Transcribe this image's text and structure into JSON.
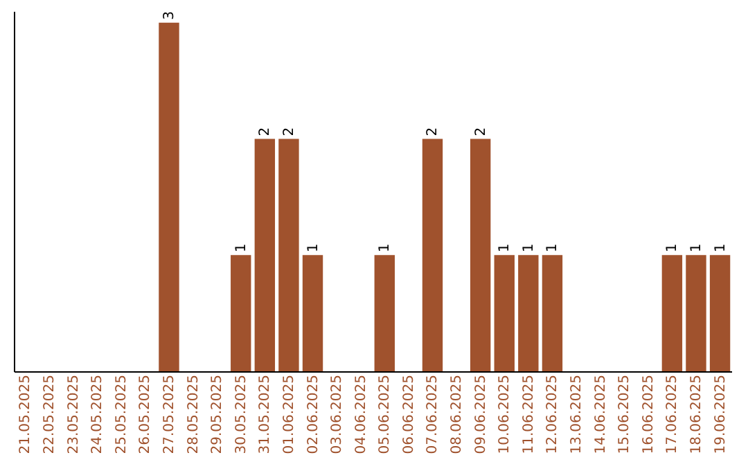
{
  "chart_data": {
    "type": "bar",
    "categories": [
      "21.05.2025",
      "22.05.2025",
      "23.05.2025",
      "24.05.2025",
      "25.05.2025",
      "26.05.2025",
      "27.05.2025",
      "28.05.2025",
      "29.05.2025",
      "30.05.2025",
      "31.05.2025",
      "01.06.2025",
      "02.06.2025",
      "03.06.2025",
      "04.06.2025",
      "05.06.2025",
      "06.06.2025",
      "07.06.2025",
      "08.06.2025",
      "09.06.2025",
      "10.06.2025",
      "11.06.2025",
      "12.06.2025",
      "13.06.2025",
      "14.06.2025",
      "15.06.2025",
      "16.06.2025",
      "17.06.2025",
      "18.06.2025",
      "19.06.2025"
    ],
    "values": [
      0,
      0,
      0,
      0,
      0,
      0,
      3,
      0,
      0,
      1,
      2,
      2,
      1,
      0,
      0,
      1,
      0,
      2,
      0,
      2,
      1,
      1,
      1,
      0,
      0,
      0,
      0,
      1,
      1,
      1
    ],
    "value_labels": [
      null,
      null,
      null,
      null,
      null,
      null,
      "3",
      null,
      null,
      "1",
      "2",
      "2",
      "1",
      null,
      null,
      "1",
      null,
      "2",
      null,
      "2",
      "1",
      "1",
      "1",
      null,
      null,
      null,
      null,
      "1",
      "1",
      "1"
    ],
    "color": "#a0522d",
    "ylim": [
      0,
      3.1
    ],
    "tick_labels": "x",
    "grid": false
  }
}
